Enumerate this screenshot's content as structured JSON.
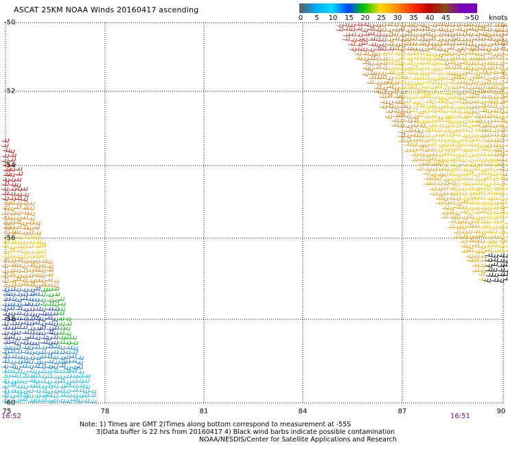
{
  "title": "ASCAT 25KM NOAA Winds 20160417 ascending",
  "legend": {
    "unit": "knots",
    "ticks": [
      "0",
      "5",
      "10",
      "15",
      "20",
      "25",
      "30",
      "35",
      "40",
      "45",
      ">50"
    ],
    "colors": [
      "#5e5e5e",
      "#00a8ff",
      "#00e0ff",
      "#0044ff",
      "#00c800",
      "#ffd800",
      "#ff9000",
      "#ff3000",
      "#c00000",
      "#8a4a1a",
      "#7a00c0"
    ]
  },
  "lat_labels": [
    "-50",
    "-52",
    "-54",
    "-56",
    "-58",
    "-60"
  ],
  "lon_labels": [
    "75",
    "78",
    "81",
    "84",
    "87",
    "90"
  ],
  "times": {
    "left": "16:52",
    "right": "16:51"
  },
  "notes": [
    "Note: 1) Times are GMT 2)Times along bottom correspond to measurement at -55S",
    "3)Data buffer is 22 hrs from 20160417 4) Black wind barbs indicate possible contamination",
    "NOAA/NESDIS/Center for Satellite Applications and Research"
  ]
}
